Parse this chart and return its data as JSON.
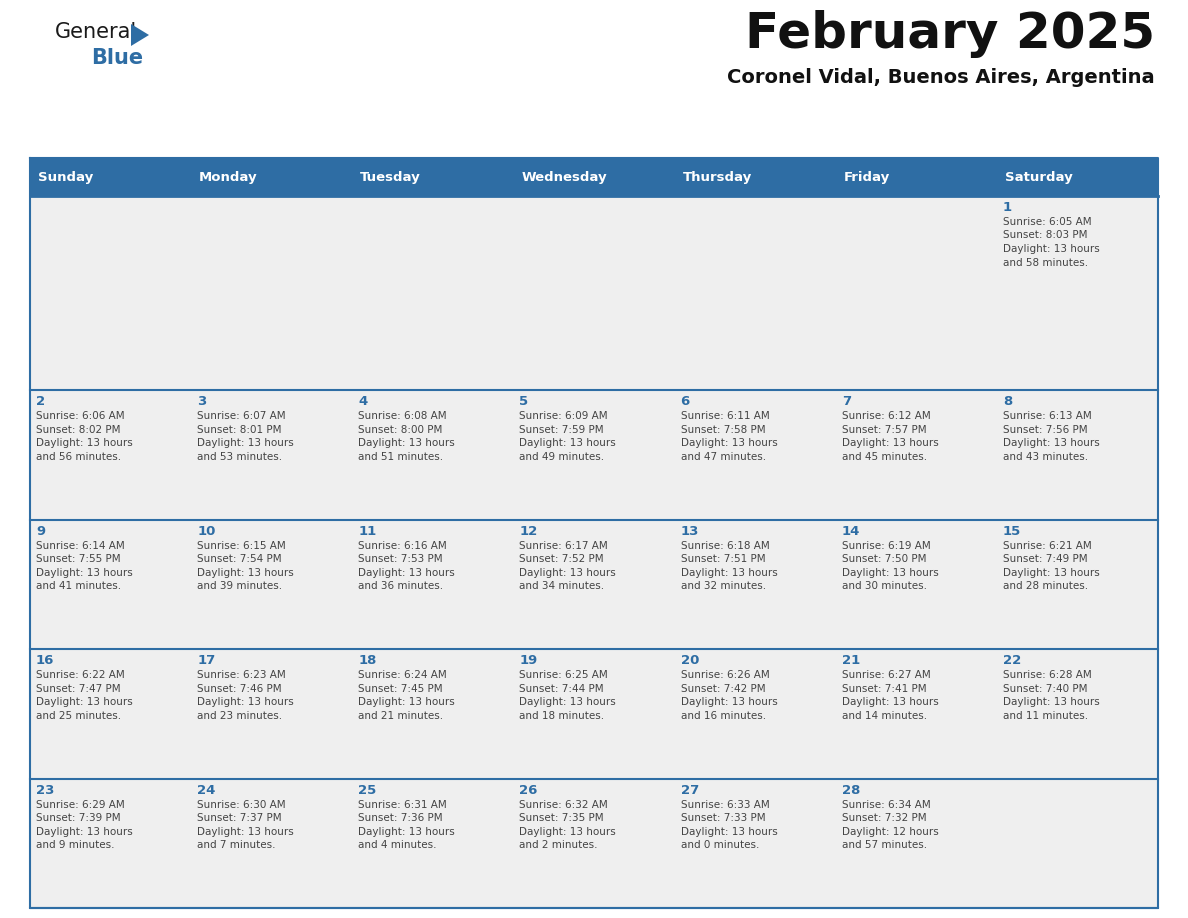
{
  "title": "February 2025",
  "subtitle": "Coronel Vidal, Buenos Aires, Argentina",
  "days_of_week": [
    "Sunday",
    "Monday",
    "Tuesday",
    "Wednesday",
    "Thursday",
    "Friday",
    "Saturday"
  ],
  "header_bg": "#2E6DA4",
  "header_text": "#FFFFFF",
  "cell_bg": "#EFEFEF",
  "border_color": "#2E6DA4",
  "day_number_color": "#2E6DA4",
  "text_color": "#444444",
  "title_color": "#111111",
  "subtitle_color": "#111111",
  "calendar_data": [
    [
      null,
      null,
      null,
      null,
      null,
      null,
      {
        "day": 1,
        "sunrise": "6:05 AM",
        "sunset": "8:03 PM",
        "daylight": "13 hours",
        "daylight2": "and 58 minutes."
      }
    ],
    [
      {
        "day": 2,
        "sunrise": "6:06 AM",
        "sunset": "8:02 PM",
        "daylight": "13 hours",
        "daylight2": "and 56 minutes."
      },
      {
        "day": 3,
        "sunrise": "6:07 AM",
        "sunset": "8:01 PM",
        "daylight": "13 hours",
        "daylight2": "and 53 minutes."
      },
      {
        "day": 4,
        "sunrise": "6:08 AM",
        "sunset": "8:00 PM",
        "daylight": "13 hours",
        "daylight2": "and 51 minutes."
      },
      {
        "day": 5,
        "sunrise": "6:09 AM",
        "sunset": "7:59 PM",
        "daylight": "13 hours",
        "daylight2": "and 49 minutes."
      },
      {
        "day": 6,
        "sunrise": "6:11 AM",
        "sunset": "7:58 PM",
        "daylight": "13 hours",
        "daylight2": "and 47 minutes."
      },
      {
        "day": 7,
        "sunrise": "6:12 AM",
        "sunset": "7:57 PM",
        "daylight": "13 hours",
        "daylight2": "and 45 minutes."
      },
      {
        "day": 8,
        "sunrise": "6:13 AM",
        "sunset": "7:56 PM",
        "daylight": "13 hours",
        "daylight2": "and 43 minutes."
      }
    ],
    [
      {
        "day": 9,
        "sunrise": "6:14 AM",
        "sunset": "7:55 PM",
        "daylight": "13 hours",
        "daylight2": "and 41 minutes."
      },
      {
        "day": 10,
        "sunrise": "6:15 AM",
        "sunset": "7:54 PM",
        "daylight": "13 hours",
        "daylight2": "and 39 minutes."
      },
      {
        "day": 11,
        "sunrise": "6:16 AM",
        "sunset": "7:53 PM",
        "daylight": "13 hours",
        "daylight2": "and 36 minutes."
      },
      {
        "day": 12,
        "sunrise": "6:17 AM",
        "sunset": "7:52 PM",
        "daylight": "13 hours",
        "daylight2": "and 34 minutes."
      },
      {
        "day": 13,
        "sunrise": "6:18 AM",
        "sunset": "7:51 PM",
        "daylight": "13 hours",
        "daylight2": "and 32 minutes."
      },
      {
        "day": 14,
        "sunrise": "6:19 AM",
        "sunset": "7:50 PM",
        "daylight": "13 hours",
        "daylight2": "and 30 minutes."
      },
      {
        "day": 15,
        "sunrise": "6:21 AM",
        "sunset": "7:49 PM",
        "daylight": "13 hours",
        "daylight2": "and 28 minutes."
      }
    ],
    [
      {
        "day": 16,
        "sunrise": "6:22 AM",
        "sunset": "7:47 PM",
        "daylight": "13 hours",
        "daylight2": "and 25 minutes."
      },
      {
        "day": 17,
        "sunrise": "6:23 AM",
        "sunset": "7:46 PM",
        "daylight": "13 hours",
        "daylight2": "and 23 minutes."
      },
      {
        "day": 18,
        "sunrise": "6:24 AM",
        "sunset": "7:45 PM",
        "daylight": "13 hours",
        "daylight2": "and 21 minutes."
      },
      {
        "day": 19,
        "sunrise": "6:25 AM",
        "sunset": "7:44 PM",
        "daylight": "13 hours",
        "daylight2": "and 18 minutes."
      },
      {
        "day": 20,
        "sunrise": "6:26 AM",
        "sunset": "7:42 PM",
        "daylight": "13 hours",
        "daylight2": "and 16 minutes."
      },
      {
        "day": 21,
        "sunrise": "6:27 AM",
        "sunset": "7:41 PM",
        "daylight": "13 hours",
        "daylight2": "and 14 minutes."
      },
      {
        "day": 22,
        "sunrise": "6:28 AM",
        "sunset": "7:40 PM",
        "daylight": "13 hours",
        "daylight2": "and 11 minutes."
      }
    ],
    [
      {
        "day": 23,
        "sunrise": "6:29 AM",
        "sunset": "7:39 PM",
        "daylight": "13 hours",
        "daylight2": "and 9 minutes."
      },
      {
        "day": 24,
        "sunrise": "6:30 AM",
        "sunset": "7:37 PM",
        "daylight": "13 hours",
        "daylight2": "and 7 minutes."
      },
      {
        "day": 25,
        "sunrise": "6:31 AM",
        "sunset": "7:36 PM",
        "daylight": "13 hours",
        "daylight2": "and 4 minutes."
      },
      {
        "day": 26,
        "sunrise": "6:32 AM",
        "sunset": "7:35 PM",
        "daylight": "13 hours",
        "daylight2": "and 2 minutes."
      },
      {
        "day": 27,
        "sunrise": "6:33 AM",
        "sunset": "7:33 PM",
        "daylight": "13 hours",
        "daylight2": "and 0 minutes."
      },
      {
        "day": 28,
        "sunrise": "6:34 AM",
        "sunset": "7:32 PM",
        "daylight": "12 hours",
        "daylight2": "and 57 minutes."
      },
      null
    ]
  ]
}
